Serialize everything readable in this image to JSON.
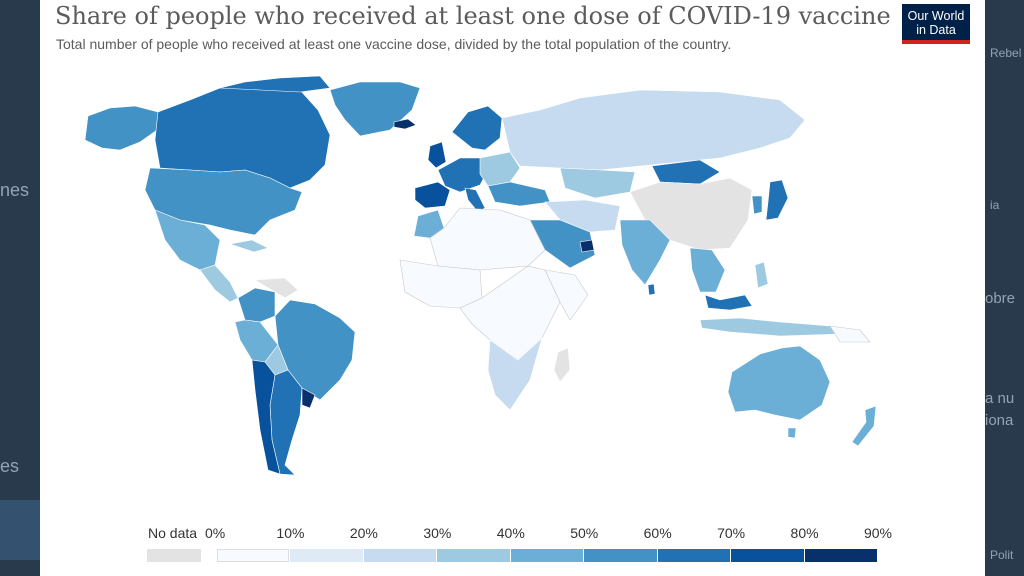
{
  "title": "Share of people who received at least one dose of COVID-19 vaccine",
  "subtitle": "Total number of people who received at least one vaccine dose, divided by the total population of the country.",
  "logo": {
    "line1": "Our World",
    "line2": "in Data",
    "bg": "#002147",
    "accent": "#ce261e"
  },
  "legend": {
    "no_data_label": "No data",
    "no_data_color": "#e3e3e3",
    "thresholds": [
      "0%",
      "10%",
      "20%",
      "30%",
      "40%",
      "50%",
      "60%",
      "70%",
      "80%",
      "90%"
    ],
    "colors": [
      "#f7fbff",
      "#deebf7",
      "#c6dbef",
      "#9ecae1",
      "#6baed6",
      "#4292c6",
      "#2171b5",
      "#08519c",
      "#08306b"
    ]
  },
  "background_fragments": {
    "left": [
      "nes",
      "es"
    ],
    "right": [
      "Rebel",
      "ia",
      "obre",
      "a nu",
      "iona",
      "Polit"
    ]
  }
}
